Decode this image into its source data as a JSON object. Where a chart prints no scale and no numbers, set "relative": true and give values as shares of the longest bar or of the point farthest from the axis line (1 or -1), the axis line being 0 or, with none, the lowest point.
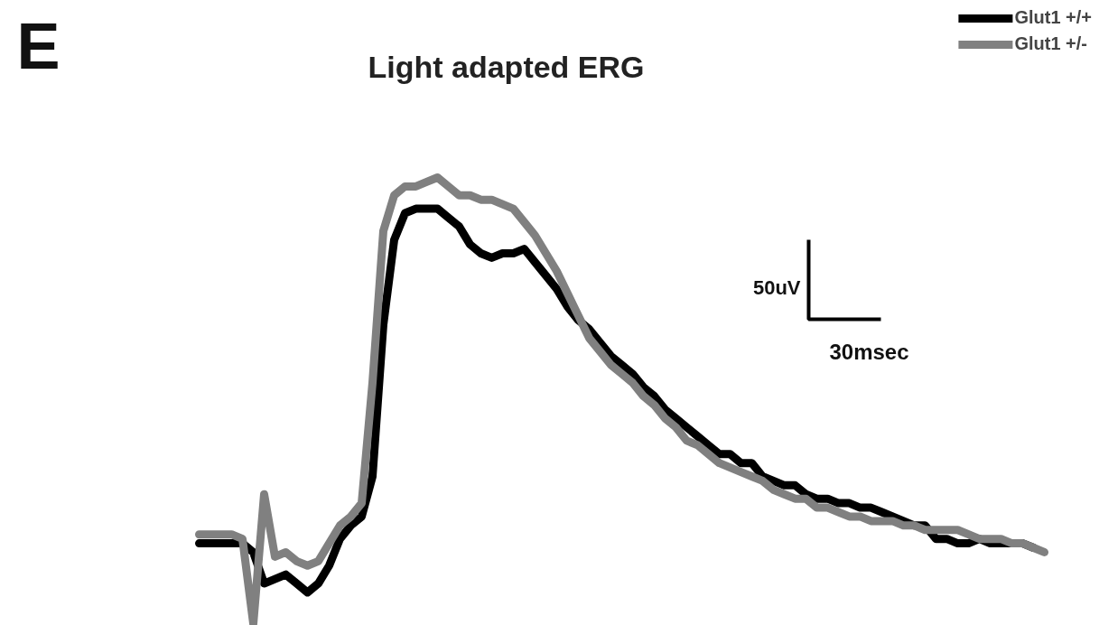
{
  "chart_data": {
    "type": "line",
    "relative": true,
    "title": "Light adapted ERG",
    "annotations": [
      "E",
      "50uV",
      "30msec"
    ],
    "categories": [
      null,
      null,
      null,
      null,
      null,
      null,
      null,
      null,
      null,
      null,
      null,
      null,
      null,
      null,
      null,
      null,
      null,
      null,
      null,
      null,
      null,
      null,
      null,
      null,
      null,
      null,
      null,
      null,
      null,
      null,
      null,
      null,
      null,
      null,
      null,
      null,
      null,
      null,
      null,
      null,
      null,
      null,
      null,
      null,
      null,
      null,
      null,
      null,
      null,
      null,
      null,
      null,
      null,
      null,
      null,
      null,
      null,
      null,
      null,
      null,
      null,
      null,
      null,
      null,
      null,
      null,
      null,
      null,
      null,
      null,
      null,
      null,
      null,
      null,
      null,
      null,
      null,
      null,
      null
    ],
    "legend": "top right",
    "line_style": "solid",
    "marker": "none",
    "grid": false,
    "series": [
      {
        "name": "Glut1 +/+",
        "color": "#000000",
        "values": [
          0.18,
          0.18,
          0.18,
          0.18,
          0.18,
          0.16,
          0.09,
          0.1,
          0.11,
          0.09,
          0.07,
          0.09,
          0.13,
          0.19,
          0.22,
          0.24,
          0.33,
          0.67,
          0.86,
          0.92,
          0.93,
          0.93,
          0.93,
          0.91,
          0.89,
          0.85,
          0.83,
          0.82,
          0.83,
          0.83,
          0.84,
          0.81,
          0.78,
          0.75,
          0.71,
          0.68,
          0.66,
          0.63,
          0.6,
          0.58,
          0.56,
          0.53,
          0.51,
          0.48,
          0.46,
          0.44,
          0.42,
          0.4,
          0.38,
          0.38,
          0.36,
          0.36,
          0.33,
          0.32,
          0.31,
          0.31,
          0.29,
          0.28,
          0.28,
          0.27,
          0.27,
          0.26,
          0.26,
          0.25,
          0.24,
          0.23,
          0.22,
          0.22,
          0.19,
          0.19,
          0.18,
          0.18,
          0.19,
          0.18,
          0.18,
          0.18,
          0.18,
          0.17,
          null
        ]
      },
      {
        "name": "Glut1 +/-",
        "color": "#808080",
        "values": [
          0.2,
          0.2,
          0.2,
          0.2,
          0.19,
          0.0,
          0.29,
          0.15,
          0.16,
          0.14,
          0.13,
          0.14,
          0.18,
          0.22,
          0.24,
          0.27,
          0.54,
          0.88,
          0.96,
          0.98,
          0.98,
          0.99,
          1.0,
          0.98,
          0.96,
          0.96,
          0.95,
          0.95,
          0.94,
          0.93,
          0.9,
          0.87,
          0.83,
          0.79,
          0.74,
          0.69,
          0.64,
          0.61,
          0.58,
          0.56,
          0.54,
          0.51,
          0.49,
          0.46,
          0.44,
          0.41,
          0.4,
          0.38,
          0.36,
          0.35,
          0.34,
          0.33,
          0.32,
          0.3,
          0.29,
          0.28,
          0.28,
          0.26,
          0.26,
          0.25,
          0.24,
          0.24,
          0.23,
          0.23,
          0.23,
          0.22,
          0.22,
          0.21,
          0.21,
          0.21,
          0.21,
          0.2,
          0.19,
          0.19,
          0.19,
          0.18,
          0.18,
          0.17,
          0.16
        ]
      }
    ]
  }
}
